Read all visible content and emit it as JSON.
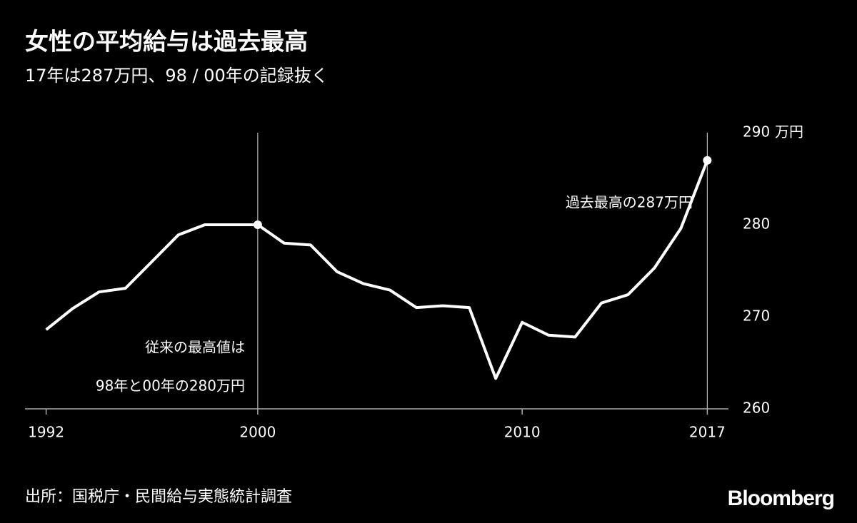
{
  "chart_data": {
    "type": "line",
    "title": "女性の平均給与は過去最高",
    "subtitle": "17年は287万円、98 / 00年の記録抜く",
    "y_unit": "万円",
    "x": [
      1992,
      1993,
      1994,
      1995,
      1996,
      1997,
      1998,
      1999,
      2000,
      2001,
      2002,
      2003,
      2004,
      2005,
      2006,
      2007,
      2008,
      2009,
      2010,
      2011,
      2012,
      2013,
      2014,
      2015,
      2016,
      2017
    ],
    "values": [
      268.6,
      270.9,
      272.7,
      273.1,
      276.0,
      278.9,
      280,
      280,
      280,
      278.0,
      277.8,
      274.9,
      273.6,
      272.9,
      271.0,
      271.2,
      271.0,
      263.3,
      269.4,
      268.0,
      267.8,
      271.5,
      272.4,
      275.3,
      279.6,
      287
    ],
    "color": "#ffffff",
    "xlim": [
      1991.2,
      2017.8
    ],
    "xticks": [
      1992,
      2000,
      2010,
      2017
    ],
    "ylim": [
      260,
      290
    ],
    "yticks": [
      260,
      270,
      280,
      290
    ],
    "grid": true,
    "vlines": [
      2000,
      2017
    ],
    "annotations": [
      "過去最高の287万円",
      "従来の最高値は",
      "98年と00年の280万円"
    ],
    "source": "出所：国税庁・民間給与実態統計調査",
    "brand": "Bloomberg"
  }
}
